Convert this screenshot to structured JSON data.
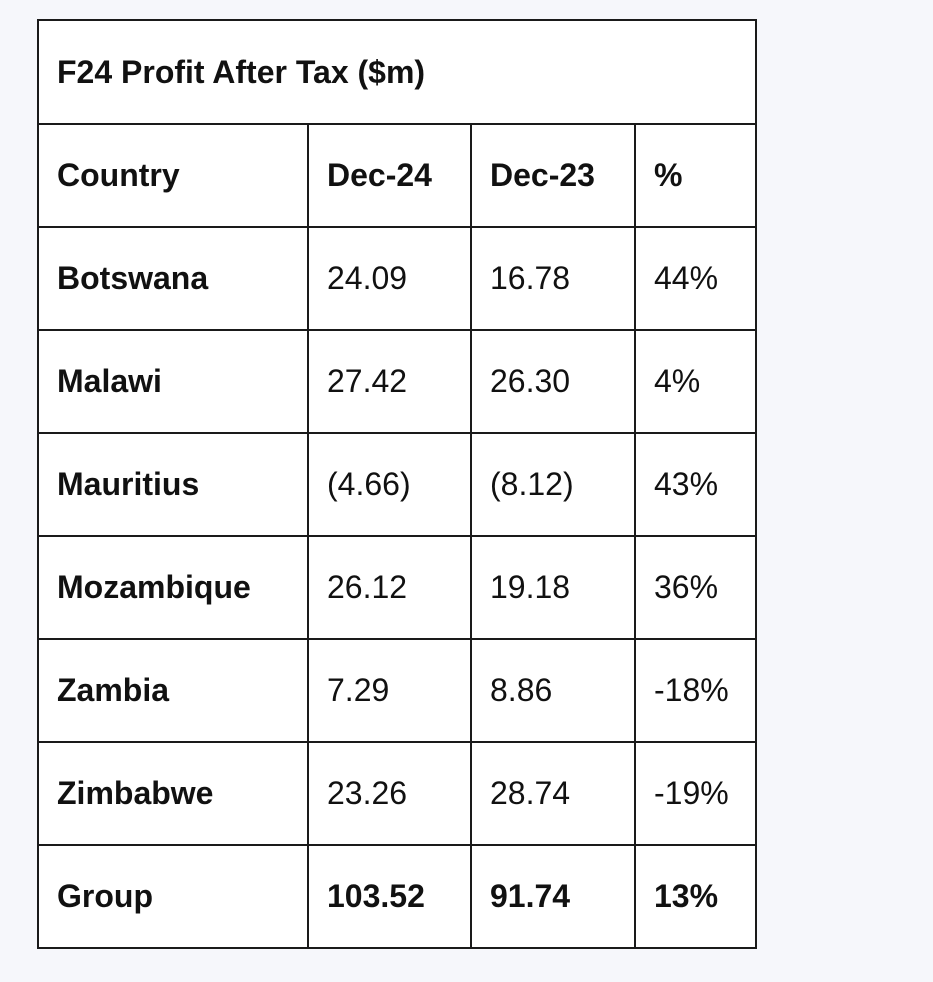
{
  "table": {
    "title": "F24 Profit After Tax ($m)",
    "columns": [
      "Country",
      "Dec-24",
      "Dec-23",
      "%"
    ],
    "rows": [
      {
        "country": "Botswana",
        "dec24": "24.09",
        "dec23": "16.78",
        "pct": "44%"
      },
      {
        "country": "Malawi",
        "dec24": "27.42",
        "dec23": "26.30",
        "pct": "4%"
      },
      {
        "country": "Mauritius",
        "dec24": "(4.66)",
        "dec23": "(8.12)",
        "pct": "43%"
      },
      {
        "country": "Mozambique",
        "dec24": "26.12",
        "dec23": "19.18",
        "pct": "36%"
      },
      {
        "country": "Zambia",
        "dec24": "7.29",
        "dec23": "8.86",
        "pct": "-18%"
      },
      {
        "country": "Zimbabwe",
        "dec24": "23.26",
        "dec23": "28.74",
        "pct": "-19%"
      }
    ],
    "total": {
      "country": "Group",
      "dec24": "103.52",
      "dec23": "91.74",
      "pct": "13%"
    }
  }
}
